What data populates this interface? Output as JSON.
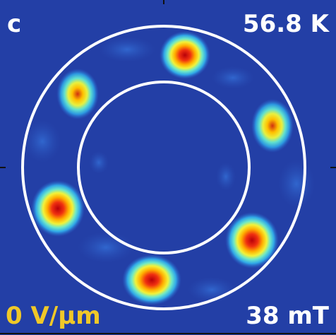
{
  "panel_label": "c",
  "temperature": "56.8 K",
  "electric_field": "0 V/μm",
  "magnetic_field": "38 mT"
}
